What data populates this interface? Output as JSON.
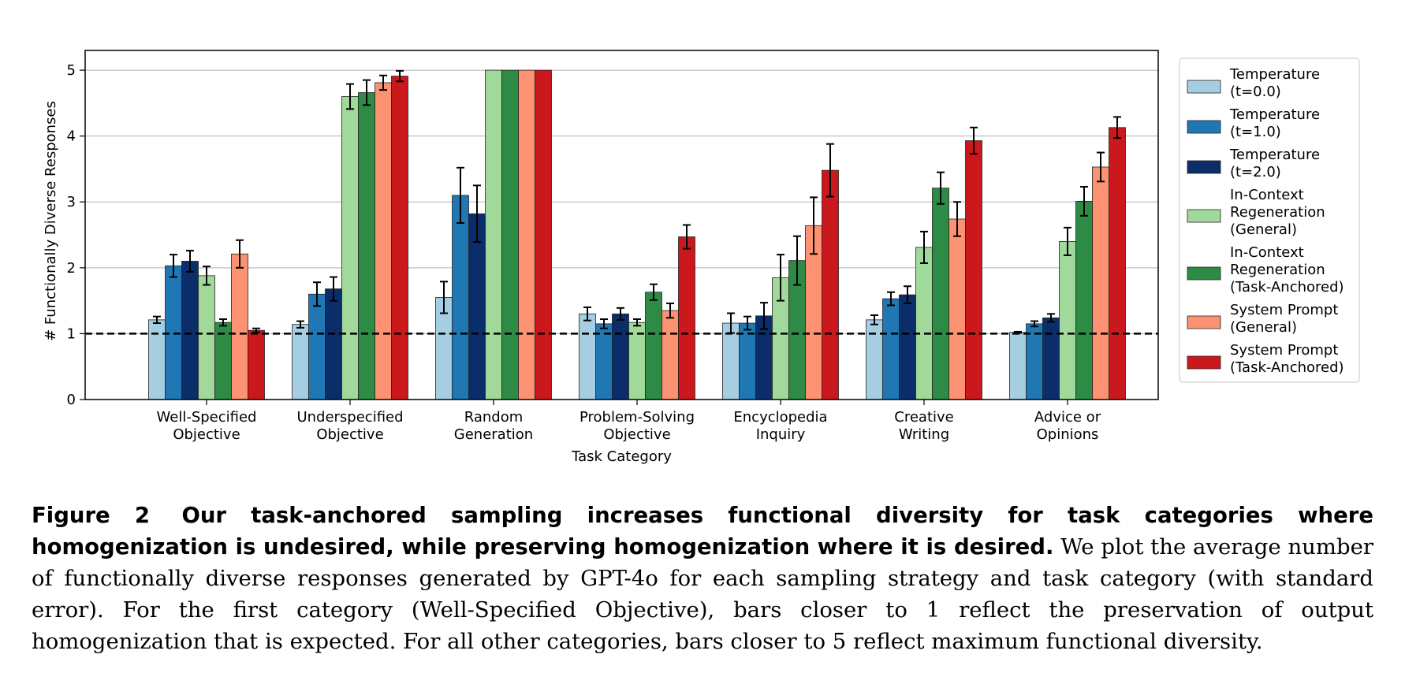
{
  "chart_data": {
    "type": "bar",
    "ylabel": "# Functionally Diverse Responses",
    "xlabel": "Task Category",
    "ylim": [
      0,
      5.3
    ],
    "yticks": [
      0,
      1,
      2,
      3,
      4,
      5
    ],
    "grid": true,
    "reference_line": 1,
    "legend_position": "right",
    "categories": [
      [
        "Well-Specified",
        "Objective"
      ],
      [
        "Underspecified",
        "Objective"
      ],
      [
        "Random",
        "Generation"
      ],
      [
        "Problem-Solving",
        "Objective"
      ],
      [
        "Encyclopedia",
        "Inquiry"
      ],
      [
        "Creative",
        "Writing"
      ],
      [
        "Advice or",
        "Opinions"
      ]
    ],
    "series": [
      {
        "name": [
          "Temperature",
          "(t=0.0)"
        ],
        "color": "#a6cee3",
        "values": [
          1.21,
          1.14,
          1.55,
          1.3,
          1.16,
          1.21,
          1.02
        ],
        "errors": [
          0.05,
          0.05,
          0.24,
          0.1,
          0.15,
          0.07,
          0.01
        ]
      },
      {
        "name": [
          "Temperature",
          "(t=1.0)"
        ],
        "color": "#1f78b4",
        "values": [
          2.03,
          1.6,
          3.1,
          1.15,
          1.16,
          1.53,
          1.15
        ],
        "errors": [
          0.17,
          0.18,
          0.42,
          0.07,
          0.1,
          0.1,
          0.04
        ]
      },
      {
        "name": [
          "Temperature",
          "(t=2.0)"
        ],
        "color": "#0b2e6b",
        "values": [
          2.1,
          1.68,
          2.82,
          1.3,
          1.27,
          1.59,
          1.24
        ],
        "errors": [
          0.16,
          0.18,
          0.43,
          0.09,
          0.2,
          0.13,
          0.06
        ]
      },
      {
        "name": [
          "In-Context",
          "Regeneration",
          "(General)"
        ],
        "color": "#a1d99b",
        "values": [
          1.88,
          4.6,
          5.0,
          1.17,
          1.85,
          2.31,
          2.4
        ],
        "errors": [
          0.14,
          0.19,
          0,
          0.05,
          0.35,
          0.24,
          0.21
        ]
      },
      {
        "name": [
          "In-Context",
          "Regeneration",
          "(Task-Anchored)"
        ],
        "color": "#2e8b46",
        "values": [
          1.17,
          4.66,
          5.0,
          1.63,
          2.11,
          3.21,
          3.01
        ],
        "errors": [
          0.05,
          0.19,
          0,
          0.12,
          0.37,
          0.24,
          0.22
        ]
      },
      {
        "name": [
          "System Prompt",
          "(General)"
        ],
        "color": "#fc9272",
        "values": [
          2.21,
          4.81,
          5.0,
          1.35,
          2.64,
          2.74,
          3.53
        ],
        "errors": [
          0.21,
          0.11,
          0,
          0.11,
          0.43,
          0.26,
          0.22
        ]
      },
      {
        "name": [
          "System Prompt",
          "(Task-Anchored)"
        ],
        "color": "#cb181d",
        "values": [
          1.05,
          4.91,
          5.0,
          2.47,
          3.48,
          3.93,
          4.13
        ],
        "errors": [
          0.03,
          0.08,
          0,
          0.18,
          0.4,
          0.2,
          0.16
        ]
      }
    ]
  },
  "caption": {
    "figure_label": "Figure 2",
    "bold_text": "Our task-anchored sampling increases functional diversity for task categories where homogenization is undesired, while preserving homogenization where it is desired.",
    "body_text": "We plot the average number of functionally diverse responses generated by GPT-4o for each sampling strategy and task category (with standard error). For the first category (Well-Specified Objective), bars closer to 1 reflect the preservation of output homogenization that is expected. For all other categories, bars closer to 5 reflect maximum functional diversity."
  }
}
